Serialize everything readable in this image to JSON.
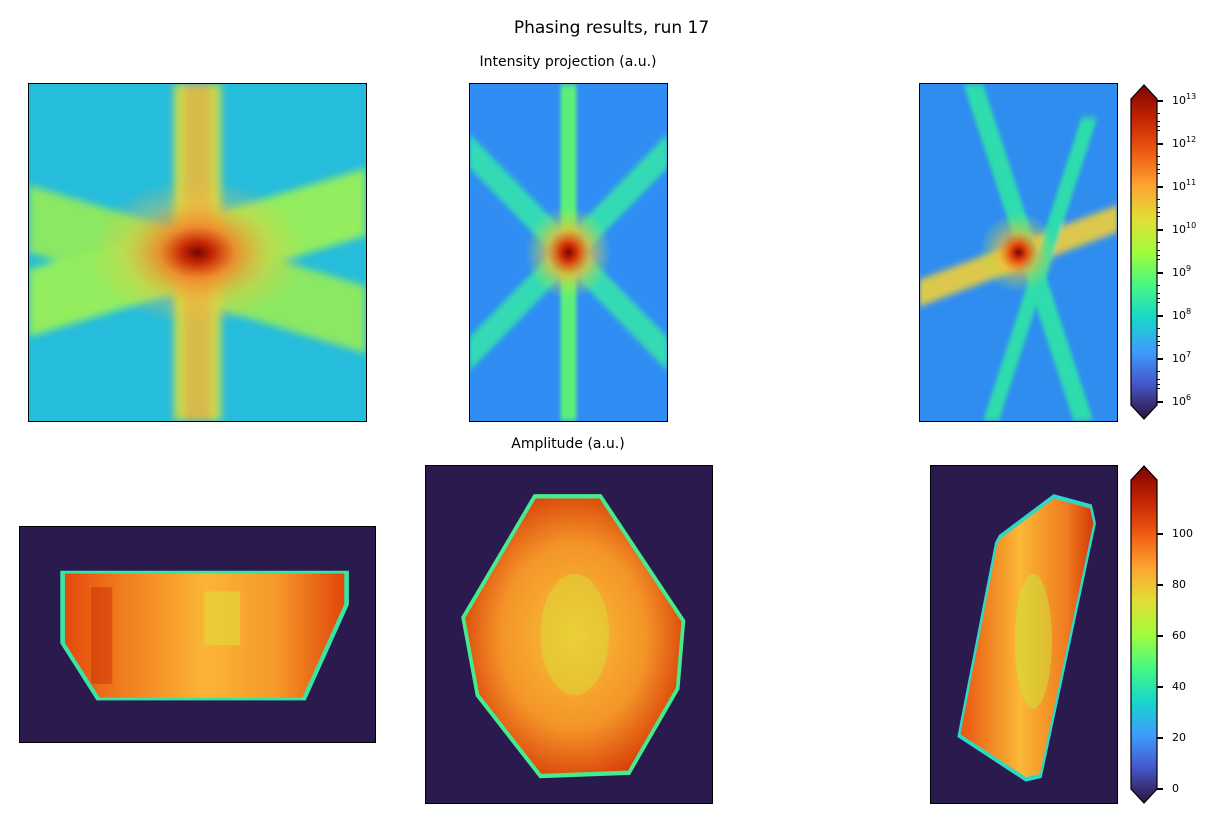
{
  "figure": {
    "title": "Phasing results, run 17",
    "intensity_row_title": "Intensity projection (a.u.)",
    "amplitude_row_title": "Amplitude (a.u.)"
  },
  "colormap": "turbo",
  "colorbars": {
    "intensity": {
      "scale": "log",
      "range": [
        1000000.0,
        10000000000000.0
      ],
      "extend": "both",
      "ticks": [
        {
          "base": "10",
          "exp": "13"
        },
        {
          "base": "10",
          "exp": "12"
        },
        {
          "base": "10",
          "exp": "11"
        },
        {
          "base": "10",
          "exp": "10"
        },
        {
          "base": "10",
          "exp": "9"
        },
        {
          "base": "10",
          "exp": "8"
        },
        {
          "base": "10",
          "exp": "7"
        },
        {
          "base": "10",
          "exp": "6"
        }
      ]
    },
    "amplitude": {
      "scale": "linear",
      "range": [
        0,
        120
      ],
      "extend": "both",
      "ticks": [
        "100",
        "80",
        "60",
        "40",
        "20",
        "0"
      ]
    }
  }
}
